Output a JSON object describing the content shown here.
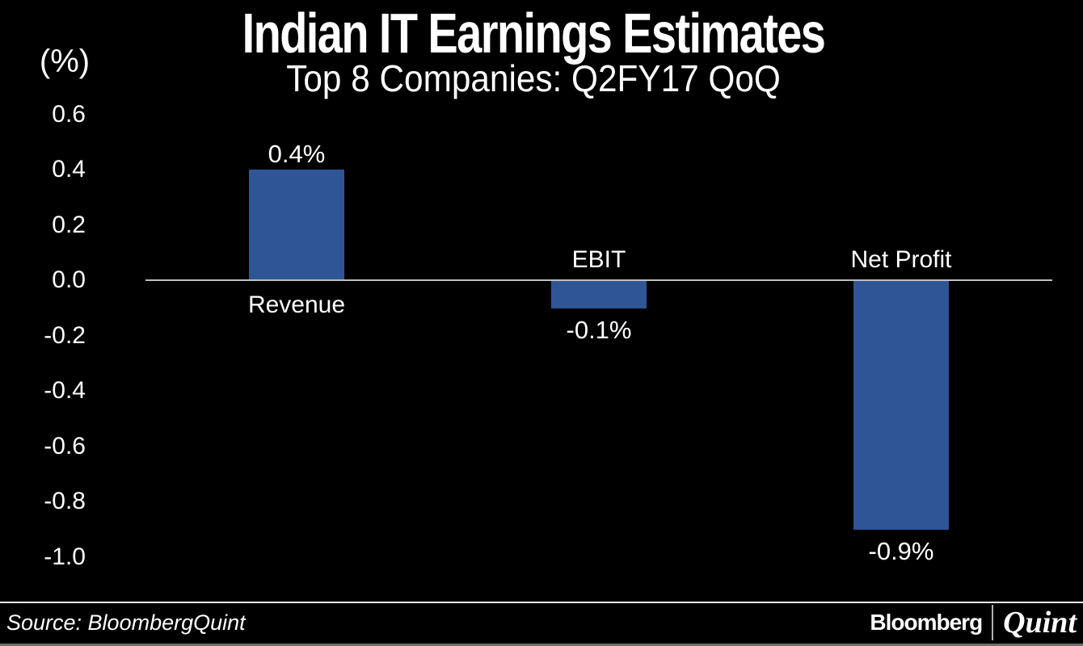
{
  "page": {
    "background": "#000000",
    "text_color": "#ffffff"
  },
  "chart_data": {
    "type": "bar",
    "title": "Indian IT Earnings Estimates",
    "subtitle": "Top 8 Companies: Q2FY17 QoQ",
    "unit_label": "(%)",
    "categories": [
      "Revenue",
      "EBIT",
      "Net Profit"
    ],
    "values": [
      0.4,
      -0.1,
      -0.9
    ],
    "value_labels": [
      "0.4%",
      "-0.1%",
      "-0.9%"
    ],
    "y_ticks": [
      0.6,
      0.4,
      0.2,
      0.0,
      -0.2,
      -0.4,
      -0.6,
      -0.8,
      -1.0
    ],
    "y_tick_labels": [
      "0.6",
      "0.4",
      "0.2",
      "0.0",
      "-0.2",
      "-0.4",
      "-0.6",
      "-0.8",
      "-1.0"
    ],
    "ylim": [
      -1.0,
      0.6
    ],
    "grid": false,
    "legend_position": "none",
    "bar_color": "#2F5596",
    "axis_line_color": "#BFBFBF"
  },
  "footer": {
    "source": "Source: BloombergQuint",
    "brand_primary": "Bloomberg",
    "brand_divider": "|",
    "brand_secondary": "Quint"
  }
}
